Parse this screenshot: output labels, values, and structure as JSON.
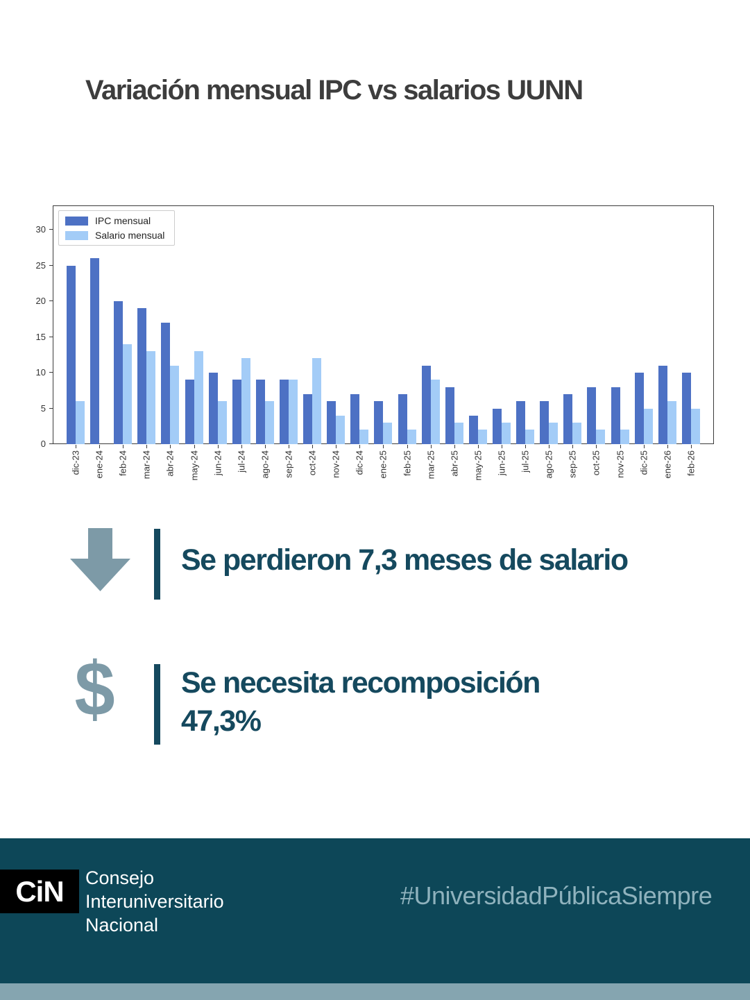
{
  "title": "Variación mensual IPC vs salarios UUNN",
  "chart_data": {
    "type": "bar",
    "title": "",
    "xlabel": "",
    "ylabel": "",
    "categories": [
      "dic-23",
      "ene-24",
      "feb-24",
      "mar-24",
      "abr-24",
      "may-24",
      "jun-24",
      "jul-24",
      "ago-24",
      "sep-24",
      "oct-24",
      "nov-24",
      "dic-24",
      "ene-25",
      "feb-25",
      "mar-25",
      "abr-25",
      "may-25",
      "jun-25",
      "jul-25",
      "ago-25",
      "sep-25",
      "oct-25",
      "nov-25",
      "dic-25",
      "ene-26",
      "feb-26"
    ],
    "series": [
      {
        "name": "IPC mensual",
        "color": "#4d71c4",
        "values": [
          25,
          26,
          20,
          19,
          17,
          9,
          10,
          9,
          9,
          9,
          7,
          6,
          7,
          6,
          7,
          11,
          8,
          4,
          5,
          6,
          6,
          7,
          8,
          8,
          10,
          11,
          10
        ]
      },
      {
        "name": "Salario mensual",
        "color": "#a3ccf7",
        "values": [
          6,
          0,
          14,
          13,
          11,
          13,
          6,
          12,
          6,
          9,
          12,
          4,
          2,
          3,
          2,
          9,
          3,
          2,
          3,
          2,
          3,
          3,
          2,
          2,
          5,
          6,
          5
        ]
      }
    ],
    "ylim": [
      0,
      33.4
    ],
    "yticks": [
      0,
      5,
      10,
      15,
      20,
      25,
      30
    ],
    "grid": false,
    "legend_position": "upper-left"
  },
  "callouts": [
    {
      "icon": "down-arrow-icon",
      "lines": [
        "Se perdieron 7,3 meses de salario"
      ]
    },
    {
      "icon": "dollar-icon",
      "dollar_glyph": "$",
      "lines": [
        "Se necesita recomposición",
        "47,3%"
      ]
    }
  ],
  "footer": {
    "logo": "CiN",
    "org_name": "Consejo\nInteruniversitario\nNacional",
    "hashtag": "#UniversidadPúblicaSiempre"
  },
  "colors": {
    "ipc_bar": "#4d71c4",
    "salario_bar": "#a3ccf7",
    "title_text": "#3d3d3d",
    "callout_text": "#15495e",
    "callout_icon": "#7d9aa7",
    "footer_background": "#0d4758",
    "footer_strip": "#85a5b0",
    "hashtag_text": "#8fb2bd",
    "logo_background": "#000000"
  }
}
